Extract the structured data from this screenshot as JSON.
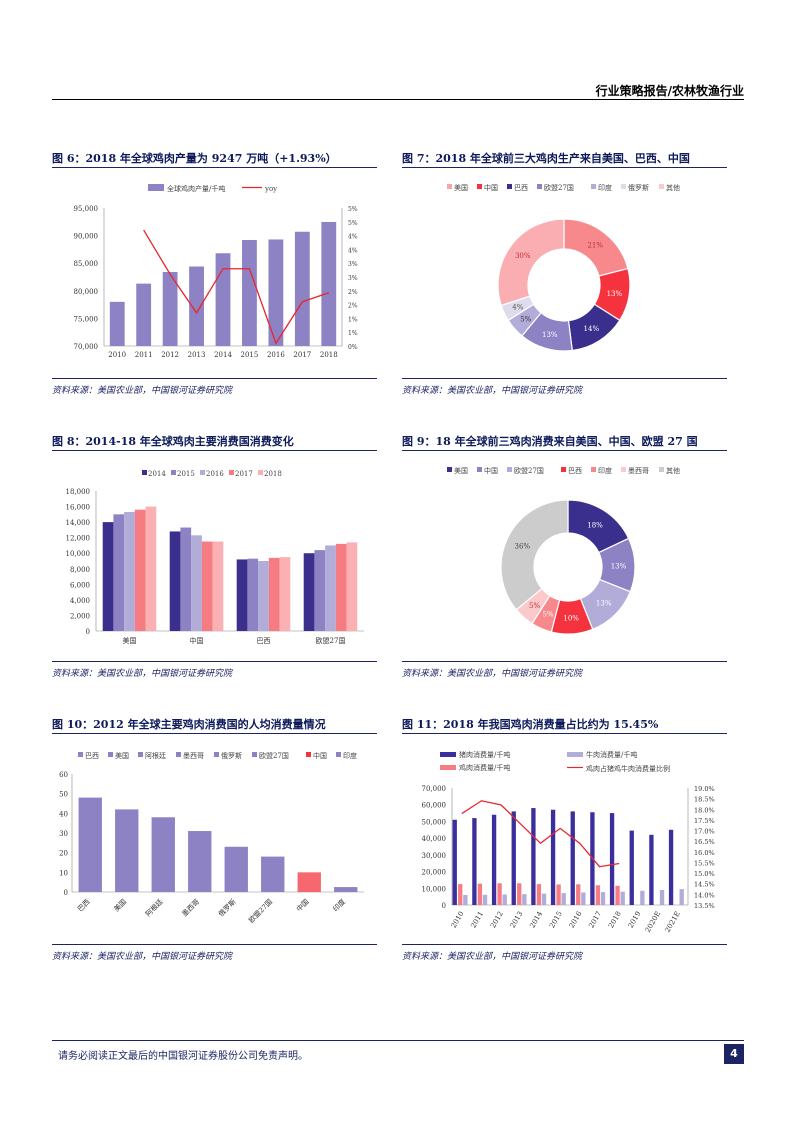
{
  "header": {
    "title": "行业策略报告/农林牧渔行业"
  },
  "colors": {
    "purple": "#8d82c4",
    "navy": "#3b2f8d",
    "red": "#f5333f",
    "pink": "#f7a5a7",
    "lightpurple": "#b1acd8",
    "lightpink": "#fbc9ca",
    "grey": "#cccccc",
    "line_red": "#e8262d"
  },
  "figures": {
    "f6": {
      "title": "图 6：2018 年全球鸡肉产量为 9247 万吨（+1.93%）",
      "source": "资料来源：美国农业部，中国银河证券研究院"
    },
    "f7": {
      "title": "图 7：2018 年全球前三大鸡肉生产来自美国、巴西、中国",
      "source": "资料来源：美国农业部，中国银河证券研究院"
    },
    "f8": {
      "title": "图 8：2014-18 年全球鸡肉主要消费国消费变化",
      "source": "资料来源：美国农业部，中国银河证券研究院"
    },
    "f9": {
      "title": "图 9：18 年全球前三鸡肉消费来自美国、中国、欧盟 27 国",
      "source": "资料来源：美国农业部，中国银河证券研究院"
    },
    "f10": {
      "title": "图 10：2012 年全球主要鸡肉消费国的人均消费量情况",
      "source": "资料来源：美国农业部，中国银河证券研究院"
    },
    "f11": {
      "title": "图 11：2018 年我国鸡肉消费量占比约为 15.45%",
      "source": "资料来源：美国农业部，中国银河证券研究院"
    }
  },
  "chart_data": [
    {
      "id": "f6",
      "type": "bar",
      "categories": [
        "2010",
        "2011",
        "2012",
        "2013",
        "2014",
        "2015",
        "2016",
        "2017",
        "2018"
      ],
      "series": [
        {
          "name": "全球鸡肉产量/千吨",
          "type": "bar",
          "values": [
            78000,
            81300,
            83400,
            84400,
            86800,
            89200,
            89300,
            90700,
            92470
          ]
        },
        {
          "name": "yoy",
          "type": "line",
          "axis": "right",
          "values": [
            null,
            4.2,
            2.6,
            1.2,
            2.8,
            2.8,
            0.1,
            1.6,
            1.93
          ]
        }
      ],
      "ylim": [
        70000,
        95000
      ],
      "yticks": [
        "70,000",
        "75,000",
        "80,000",
        "85,000",
        "90,000",
        "95,000"
      ],
      "y2lim": [
        0,
        5
      ],
      "y2ticks": [
        "0%",
        "1%",
        "1%",
        "2%",
        "2%",
        "3%",
        "3%",
        "4%",
        "4%",
        "5%"
      ]
    },
    {
      "id": "f7",
      "type": "pie",
      "legend": [
        "美国",
        "中国",
        "巴西",
        "欧盟27国",
        "印度",
        "俄罗斯",
        "其他"
      ],
      "values": [
        21,
        13,
        14,
        13,
        5,
        4,
        30
      ],
      "labels": [
        "21%",
        "13%",
        "14%",
        "13%",
        "5%",
        "4%",
        "30%"
      ]
    },
    {
      "id": "f8",
      "type": "bar",
      "categories": [
        "美国",
        "中国",
        "巴西",
        "欧盟27国"
      ],
      "series": [
        {
          "name": "2014",
          "values": [
            14000,
            12800,
            9200,
            10000
          ]
        },
        {
          "name": "2015",
          "values": [
            15000,
            13300,
            9300,
            10400
          ]
        },
        {
          "name": "2016",
          "values": [
            15300,
            12300,
            9000,
            11000
          ]
        },
        {
          "name": "2017",
          "values": [
            15600,
            11500,
            9400,
            11200
          ]
        },
        {
          "name": "2018",
          "values": [
            16000,
            11500,
            9500,
            11400
          ]
        }
      ],
      "ylim": [
        0,
        18000
      ],
      "yticks": [
        "0",
        "2,000",
        "4,000",
        "6,000",
        "8,000",
        "10,000",
        "12,000",
        "14,000",
        "16,000",
        "18,000"
      ]
    },
    {
      "id": "f9",
      "type": "pie",
      "legend": [
        "美国",
        "中国",
        "欧盟27国",
        "巴西",
        "印度",
        "墨西哥",
        "其他"
      ],
      "values": [
        18,
        13,
        13,
        10,
        5,
        5,
        36
      ],
      "labels": [
        "18%",
        "13%",
        "13%",
        "10%",
        "5%",
        "5%",
        "36%"
      ]
    },
    {
      "id": "f10",
      "type": "bar",
      "legend": [
        "巴西",
        "美国",
        "阿根廷",
        "墨西哥",
        "俄罗斯",
        "欧盟27国",
        "中国",
        "印度"
      ],
      "categories": [
        "巴西",
        "美国",
        "阿根廷",
        "墨西哥",
        "俄罗斯",
        "欧盟27国",
        "中国",
        "印度"
      ],
      "values": [
        48,
        42,
        38,
        31,
        23,
        18,
        10,
        2.5
      ],
      "ylim": [
        0,
        60
      ],
      "yticks": [
        "0",
        "10",
        "20",
        "30",
        "40",
        "50",
        "60"
      ]
    },
    {
      "id": "f11",
      "type": "bar",
      "categories": [
        "2010",
        "2011",
        "2012",
        "2013",
        "2014",
        "2015",
        "2016",
        "2017",
        "2018",
        "2019",
        "2020E",
        "2021E"
      ],
      "series": [
        {
          "name": "猪肉消费量/千吨",
          "values": [
            51000,
            52000,
            54000,
            56000,
            58000,
            57000,
            56000,
            55500,
            55000,
            44500,
            42000,
            45000
          ]
        },
        {
          "name": "牛肉消费量/千吨",
          "values": [
            6000,
            6100,
            6300,
            6500,
            6800,
            7100,
            7500,
            7700,
            8000,
            8500,
            9000,
            9500
          ]
        },
        {
          "name": "鸡肉消费量/千吨",
          "values": [
            12500,
            12800,
            13000,
            13000,
            12500,
            12300,
            12400,
            11800,
            11500,
            null,
            null,
            null
          ]
        },
        {
          "name": "鸡肉占猪鸡牛肉消费量比例",
          "type": "line",
          "axis": "right",
          "values": [
            17.8,
            18.4,
            18.2,
            17.3,
            16.4,
            17.1,
            16.4,
            15.3,
            15.45,
            null,
            null,
            null
          ]
        }
      ],
      "ylim": [
        0,
        70000
      ],
      "yticks": [
        "0",
        "10,000",
        "20,000",
        "30,000",
        "40,000",
        "50,000",
        "60,000",
        "70,000"
      ],
      "y2lim": [
        13.5,
        19.0
      ],
      "y2ticks": [
        "13.5%",
        "14.0%",
        "14.5%",
        "15.0%",
        "15.5%",
        "16.0%",
        "16.5%",
        "17.0%",
        "17.5%",
        "18.0%",
        "18.5%",
        "19.0%"
      ]
    }
  ],
  "footer": {
    "disclaimer": "请务必阅读正文最后的中国银河证券股份公司免责声明。",
    "page": "4"
  }
}
